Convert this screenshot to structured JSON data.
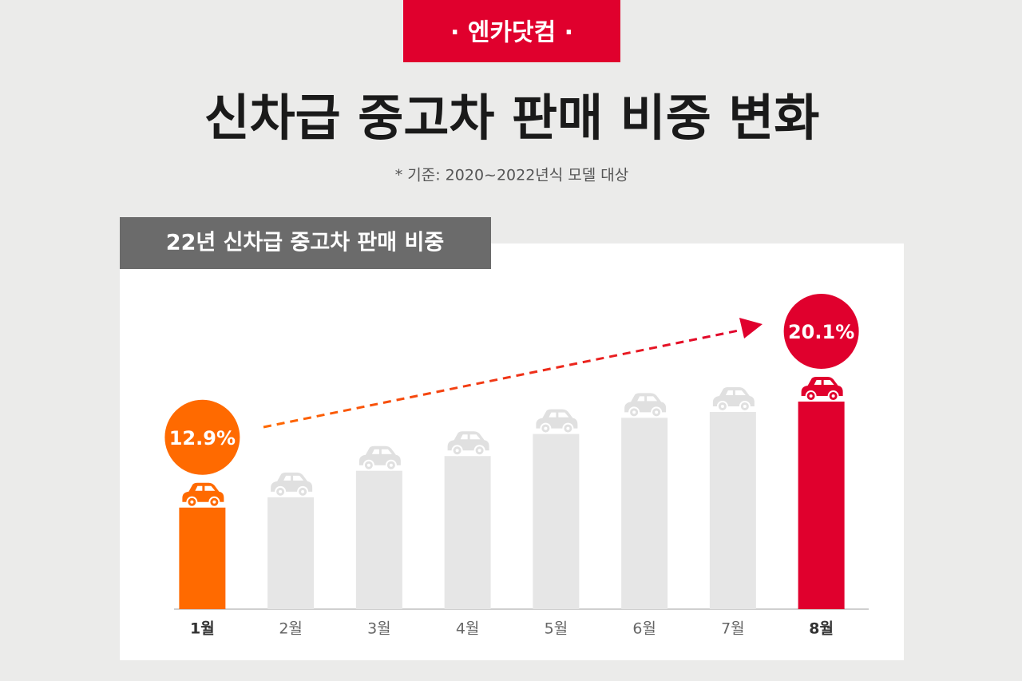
{
  "badge": "· 엔카닷컴 ·",
  "title": "신차급 중고차 판매 비중 변화",
  "note": "* 기준: 2020~2022년식 모델 대상",
  "chart_data": {
    "type": "bar",
    "title": "22년 신차급 중고차 판매 비중",
    "categories": [
      "1월",
      "2월",
      "3월",
      "4월",
      "5월",
      "6월",
      "7월",
      "8월"
    ],
    "values": [
      12.9,
      13.6,
      15.4,
      16.4,
      17.9,
      19.0,
      19.4,
      20.1
    ],
    "value_labels": [
      "12.9%",
      null,
      null,
      null,
      null,
      null,
      null,
      "20.1%"
    ],
    "colors": [
      "#ff6a00",
      "#e6e6e6",
      "#e6e6e6",
      "#e6e6e6",
      "#e6e6e6",
      "#e6e6e6",
      "#e6e6e6",
      "#e0002d"
    ],
    "ylim": [
      6,
      22
    ]
  }
}
